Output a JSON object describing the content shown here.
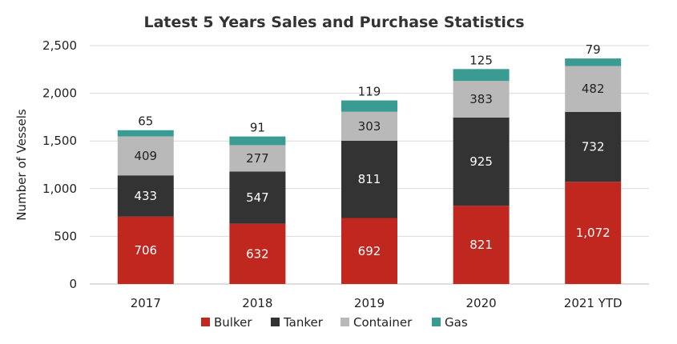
{
  "chart_data": {
    "type": "bar",
    "stacked": true,
    "title": "Latest 5 Years Sales and Purchase Statistics",
    "xlabel": "",
    "ylabel": "Number of Vessels",
    "categories": [
      "2017",
      "2018",
      "2019",
      "2020",
      "2021 YTD"
    ],
    "ylim": [
      0,
      2500
    ],
    "yticks": [
      0,
      500,
      1000,
      1500,
      2000,
      2500
    ],
    "ytick_labels": [
      "0",
      "500",
      "1,000",
      "1,500",
      "2,000",
      "2,500"
    ],
    "grid": true,
    "legend_position": "bottom",
    "series": [
      {
        "name": "Bulker",
        "color": "#c0271f",
        "label_color": "#ffffff",
        "values": [
          706,
          632,
          692,
          821,
          1072
        ],
        "labels": [
          "706",
          "632",
          "692",
          "821",
          "1,072"
        ]
      },
      {
        "name": "Tanker",
        "color": "#333333",
        "label_color": "#ffffff",
        "values": [
          433,
          547,
          811,
          925,
          732
        ],
        "labels": [
          "433",
          "547",
          "811",
          "925",
          "732"
        ]
      },
      {
        "name": "Container",
        "color": "#b9b9b9",
        "label_color": "#222222",
        "values": [
          409,
          277,
          303,
          383,
          482
        ],
        "labels": [
          "409",
          "277",
          "303",
          "383",
          "482"
        ]
      },
      {
        "name": "Gas",
        "color": "#3a9b93",
        "label_color": "#222222",
        "values": [
          65,
          91,
          119,
          125,
          79
        ],
        "labels": [
          "65",
          "91",
          "119",
          "125",
          "79"
        ],
        "label_position": "above"
      }
    ]
  }
}
